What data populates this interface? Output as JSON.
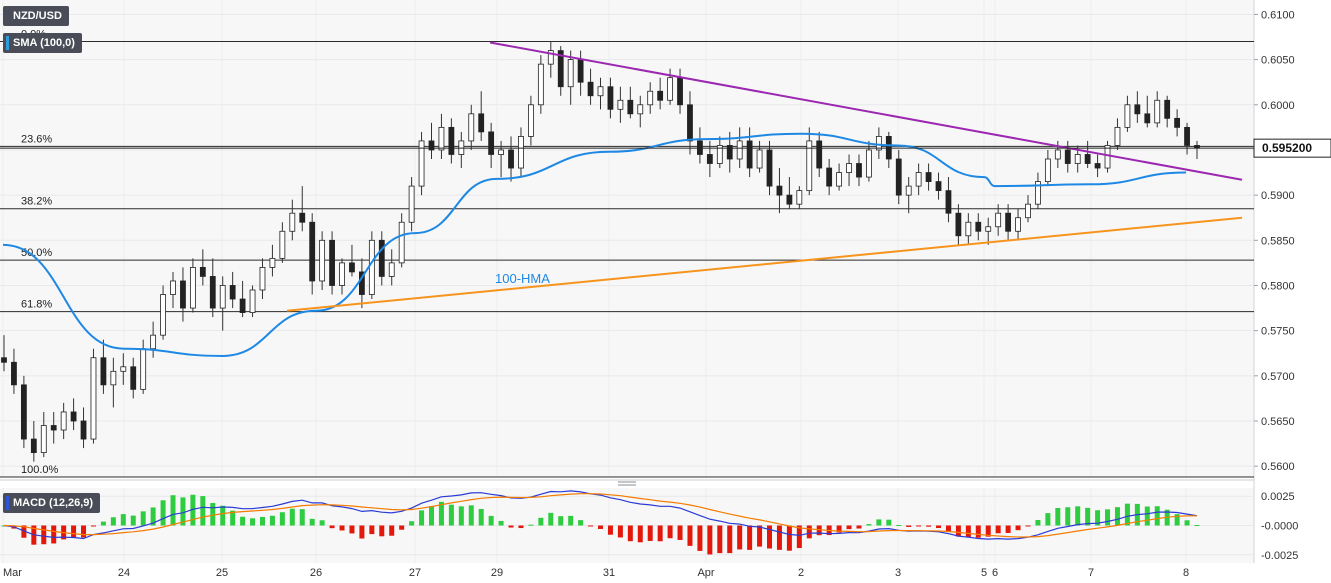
{
  "chart_data": [
    {
      "type": "candlestick",
      "title": "NZD/USD",
      "indicator_label": "SMA (100,0)",
      "ylim": [
        0.5588,
        0.6116
      ],
      "yticks": [
        "0.6100",
        "0.6050",
        "0.6000",
        "0.5950",
        "0.5900",
        "0.5850",
        "0.5800",
        "0.5750",
        "0.5700",
        "0.5650",
        "0.5600"
      ],
      "last_price": "0.595200",
      "xticks": [
        "Mar",
        "24",
        "25",
        "26",
        "27",
        "29",
        "31",
        "Apr",
        "2",
        "3",
        "5",
        "6",
        "7",
        "8"
      ],
      "fib_levels": [
        {
          "label": "0.0%",
          "value": 0.607
        },
        {
          "label": "23.6%",
          "value": 0.5954
        },
        {
          "label": "38.2%",
          "value": 0.5885
        },
        {
          "label": "50.0%",
          "value": 0.5828
        },
        {
          "label": "61.8%",
          "value": 0.5771
        },
        {
          "label": "100.0%",
          "value": 0.5588
        }
      ],
      "hma_label": "100-HMA",
      "hma_points": [
        [
          "Mar",
          0.5845
        ],
        [
          "24",
          0.573
        ],
        [
          "25",
          0.5722
        ],
        [
          "26",
          0.5772
        ],
        [
          "27",
          0.5858
        ],
        [
          "29",
          0.5918
        ],
        [
          "31",
          0.5948
        ],
        [
          "Apr",
          0.5962
        ],
        [
          "2",
          0.5968
        ],
        [
          "3",
          0.5955
        ],
        [
          "5",
          0.592
        ],
        [
          "6",
          0.591
        ],
        [
          "7",
          0.5912
        ],
        [
          "8",
          0.5925
        ]
      ],
      "trendlines": [
        {
          "name": "resistance",
          "color": "#9c27b0",
          "from": [
            "29",
            0.6069
          ],
          "to": [
            "8",
            0.5917
          ]
        },
        {
          "name": "support",
          "color": "#f7941d",
          "from": [
            "26",
            0.5772
          ],
          "to": [
            "8",
            0.5875
          ]
        }
      ],
      "candles": [
        [
          0.572,
          0.5745,
          0.5705,
          0.5715
        ],
        [
          0.5715,
          0.573,
          0.568,
          0.569
        ],
        [
          0.569,
          0.57,
          0.562,
          0.563
        ],
        [
          0.563,
          0.565,
          0.5605,
          0.5615
        ],
        [
          0.5615,
          0.566,
          0.561,
          0.5645
        ],
        [
          0.5645,
          0.566,
          0.5625,
          0.564
        ],
        [
          0.564,
          0.567,
          0.563,
          0.566
        ],
        [
          0.566,
          0.5675,
          0.564,
          0.565
        ],
        [
          0.565,
          0.5665,
          0.562,
          0.563
        ],
        [
          0.563,
          0.573,
          0.5625,
          0.572
        ],
        [
          0.572,
          0.574,
          0.568,
          0.569
        ],
        [
          0.569,
          0.572,
          0.5665,
          0.5705
        ],
        [
          0.5705,
          0.5725,
          0.569,
          0.571
        ],
        [
          0.571,
          0.572,
          0.5675,
          0.5685
        ],
        [
          0.5685,
          0.574,
          0.568,
          0.573
        ],
        [
          0.573,
          0.576,
          0.572,
          0.5745
        ],
        [
          0.5745,
          0.58,
          0.574,
          0.579
        ],
        [
          0.579,
          0.5815,
          0.5775,
          0.5805
        ],
        [
          0.5805,
          0.582,
          0.576,
          0.5775
        ],
        [
          0.5775,
          0.583,
          0.577,
          0.582
        ],
        [
          0.582,
          0.584,
          0.58,
          0.581
        ],
        [
          0.581,
          0.583,
          0.5765,
          0.5775
        ],
        [
          0.5775,
          0.581,
          0.575,
          0.58
        ],
        [
          0.58,
          0.5815,
          0.5775,
          0.5785
        ],
        [
          0.5785,
          0.5805,
          0.5765,
          0.577
        ],
        [
          0.577,
          0.58,
          0.5765,
          0.5795
        ],
        [
          0.5795,
          0.583,
          0.5785,
          0.582
        ],
        [
          0.582,
          0.5845,
          0.581,
          0.583
        ],
        [
          0.583,
          0.587,
          0.5825,
          0.586
        ],
        [
          0.586,
          0.5895,
          0.585,
          0.588
        ],
        [
          0.588,
          0.591,
          0.586,
          0.587
        ],
        [
          0.587,
          0.588,
          0.579,
          0.5805
        ],
        [
          0.5805,
          0.586,
          0.5795,
          0.585
        ],
        [
          0.585,
          0.586,
          0.579,
          0.58
        ],
        [
          0.58,
          0.583,
          0.579,
          0.5825
        ],
        [
          0.5825,
          0.5845,
          0.581,
          0.5815
        ],
        [
          0.5815,
          0.583,
          0.5775,
          0.579
        ],
        [
          0.579,
          0.586,
          0.5785,
          0.585
        ],
        [
          0.585,
          0.586,
          0.58,
          0.581
        ],
        [
          0.581,
          0.584,
          0.58,
          0.5825
        ],
        [
          0.5825,
          0.588,
          0.582,
          0.587
        ],
        [
          0.587,
          0.592,
          0.586,
          0.591
        ],
        [
          0.591,
          0.597,
          0.59,
          0.596
        ],
        [
          0.596,
          0.598,
          0.594,
          0.595
        ],
        [
          0.595,
          0.599,
          0.594,
          0.5975
        ],
        [
          0.5975,
          0.5985,
          0.5935,
          0.5945
        ],
        [
          0.5945,
          0.597,
          0.593,
          0.596
        ],
        [
          0.596,
          0.6,
          0.595,
          0.599
        ],
        [
          0.599,
          0.6015,
          0.596,
          0.597
        ],
        [
          0.597,
          0.598,
          0.593,
          0.5945
        ],
        [
          0.5945,
          0.596,
          0.592,
          0.595
        ],
        [
          0.595,
          0.5965,
          0.5915,
          0.593
        ],
        [
          0.593,
          0.5975,
          0.592,
          0.5965
        ],
        [
          0.5965,
          0.601,
          0.5955,
          0.6
        ],
        [
          0.6,
          0.6055,
          0.599,
          0.6045
        ],
        [
          0.6045,
          0.607,
          0.603,
          0.606
        ],
        [
          0.606,
          0.6065,
          0.601,
          0.602
        ],
        [
          0.602,
          0.606,
          0.6,
          0.605
        ],
        [
          0.605,
          0.606,
          0.601,
          0.6025
        ],
        [
          0.6025,
          0.604,
          0.6,
          0.601
        ],
        [
          0.601,
          0.603,
          0.5995,
          0.602
        ],
        [
          0.602,
          0.603,
          0.5985,
          0.5995
        ],
        [
          0.5995,
          0.602,
          0.598,
          0.6005
        ],
        [
          0.6005,
          0.602,
          0.5985,
          0.599
        ],
        [
          0.599,
          0.601,
          0.5975,
          0.6
        ],
        [
          0.6,
          0.6025,
          0.599,
          0.6015
        ],
        [
          0.6015,
          0.603,
          0.5995,
          0.6005
        ],
        [
          0.6005,
          0.604,
          0.6,
          0.603
        ],
        [
          0.603,
          0.604,
          0.599,
          0.6
        ],
        [
          0.6,
          0.6015,
          0.5945,
          0.596
        ],
        [
          0.596,
          0.5975,
          0.5935,
          0.5945
        ],
        [
          0.5945,
          0.596,
          0.592,
          0.5935
        ],
        [
          0.5935,
          0.5965,
          0.593,
          0.5955
        ],
        [
          0.5955,
          0.597,
          0.5925,
          0.594
        ],
        [
          0.594,
          0.5975,
          0.593,
          0.596
        ],
        [
          0.596,
          0.5975,
          0.592,
          0.593
        ],
        [
          0.593,
          0.596,
          0.5925,
          0.595
        ],
        [
          0.595,
          0.596,
          0.59,
          0.591
        ],
        [
          0.591,
          0.593,
          0.588,
          0.59
        ],
        [
          0.59,
          0.592,
          0.5885,
          0.589
        ],
        [
          0.589,
          0.591,
          0.5885,
          0.5905
        ],
        [
          0.5905,
          0.5975,
          0.59,
          0.596
        ],
        [
          0.596,
          0.597,
          0.592,
          0.593
        ],
        [
          0.593,
          0.594,
          0.59,
          0.591
        ],
        [
          0.591,
          0.5935,
          0.5905,
          0.5925
        ],
        [
          0.5925,
          0.5945,
          0.591,
          0.5935
        ],
        [
          0.5935,
          0.5945,
          0.591,
          0.592
        ],
        [
          0.592,
          0.596,
          0.5915,
          0.595
        ],
        [
          0.595,
          0.5975,
          0.594,
          0.5965
        ],
        [
          0.5965,
          0.597,
          0.593,
          0.594
        ],
        [
          0.594,
          0.595,
          0.589,
          0.59
        ],
        [
          0.59,
          0.592,
          0.588,
          0.591
        ],
        [
          0.591,
          0.5935,
          0.59,
          0.5925
        ],
        [
          0.5925,
          0.5935,
          0.5905,
          0.5915
        ],
        [
          0.5915,
          0.5925,
          0.5895,
          0.5905
        ],
        [
          0.5905,
          0.592,
          0.587,
          0.588
        ],
        [
          0.588,
          0.589,
          0.5845,
          0.5855
        ],
        [
          0.5855,
          0.588,
          0.5845,
          0.587
        ],
        [
          0.587,
          0.588,
          0.585,
          0.586
        ],
        [
          0.586,
          0.5875,
          0.5845,
          0.5865
        ],
        [
          0.5865,
          0.589,
          0.5855,
          0.588
        ],
        [
          0.588,
          0.589,
          0.585,
          0.586
        ],
        [
          0.586,
          0.5885,
          0.585,
          0.5875
        ],
        [
          0.5875,
          0.59,
          0.587,
          0.589
        ],
        [
          0.589,
          0.5925,
          0.5885,
          0.5915
        ],
        [
          0.5915,
          0.595,
          0.591,
          0.594
        ],
        [
          0.594,
          0.596,
          0.593,
          0.595
        ],
        [
          0.595,
          0.596,
          0.5925,
          0.5935
        ],
        [
          0.5935,
          0.5955,
          0.5925,
          0.5945
        ],
        [
          0.5945,
          0.596,
          0.593,
          0.5935
        ],
        [
          0.5935,
          0.5945,
          0.592,
          0.593
        ],
        [
          0.593,
          0.596,
          0.5925,
          0.5955
        ],
        [
          0.5955,
          0.5985,
          0.595,
          0.5975
        ],
        [
          0.5975,
          0.601,
          0.597,
          0.6
        ],
        [
          0.6,
          0.6015,
          0.598,
          0.599
        ],
        [
          0.599,
          0.601,
          0.5975,
          0.598
        ],
        [
          0.598,
          0.6015,
          0.5975,
          0.6005
        ],
        [
          0.6005,
          0.601,
          0.5975,
          0.5985
        ],
        [
          0.5985,
          0.5995,
          0.5965,
          0.5975
        ],
        [
          0.5975,
          0.598,
          0.5945,
          0.5955
        ],
        [
          0.5955,
          0.596,
          0.594,
          0.5952
        ]
      ]
    },
    {
      "type": "macd",
      "title": "MACD (12,26,9)",
      "ylim": [
        -0.0032,
        0.0032
      ],
      "yticks": [
        "0.0025",
        "-0.0000",
        "-0.0025"
      ]
    }
  ]
}
